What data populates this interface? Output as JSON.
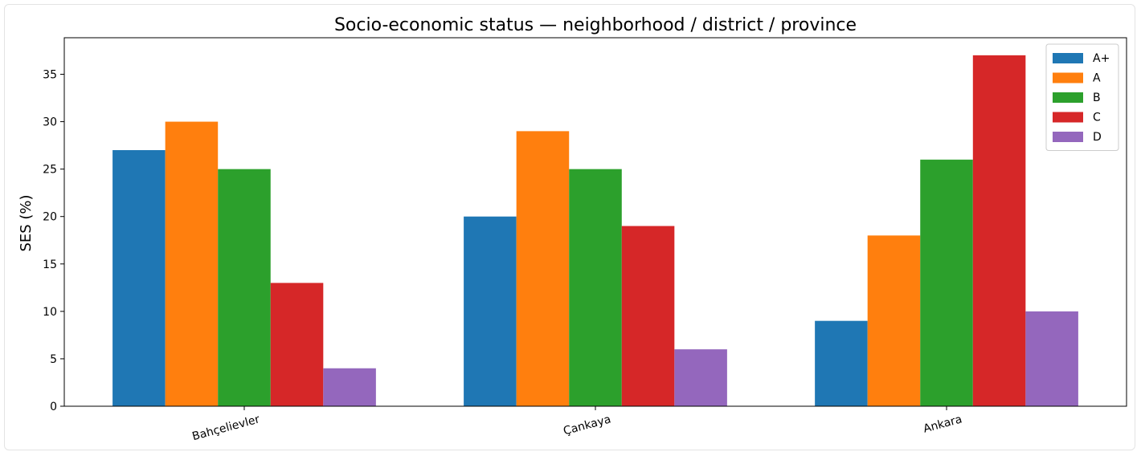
{
  "chart_data": {
    "type": "bar",
    "title": "Socio-economic status — neighborhood / district / province",
    "xlabel": "",
    "ylabel": "SES (%)",
    "categories": [
      "Bahçelievler",
      "Çankaya",
      "Ankara"
    ],
    "series": [
      {
        "name": "A+",
        "color": "#1f77b4",
        "values": [
          27,
          20,
          9
        ]
      },
      {
        "name": "A",
        "color": "#ff7f0e",
        "values": [
          30,
          29,
          18
        ]
      },
      {
        "name": "B",
        "color": "#2ca02c",
        "values": [
          25,
          25,
          26
        ]
      },
      {
        "name": "C",
        "color": "#d62728",
        "values": [
          13,
          19,
          37
        ]
      },
      {
        "name": "D",
        "color": "#9467bd",
        "values": [
          4,
          6,
          10
        ]
      }
    ],
    "ylim": [
      0,
      38.85
    ],
    "yticks": [
      0,
      5,
      10,
      15,
      20,
      25,
      30,
      35
    ],
    "grid": false,
    "legend_position": "top-right"
  }
}
